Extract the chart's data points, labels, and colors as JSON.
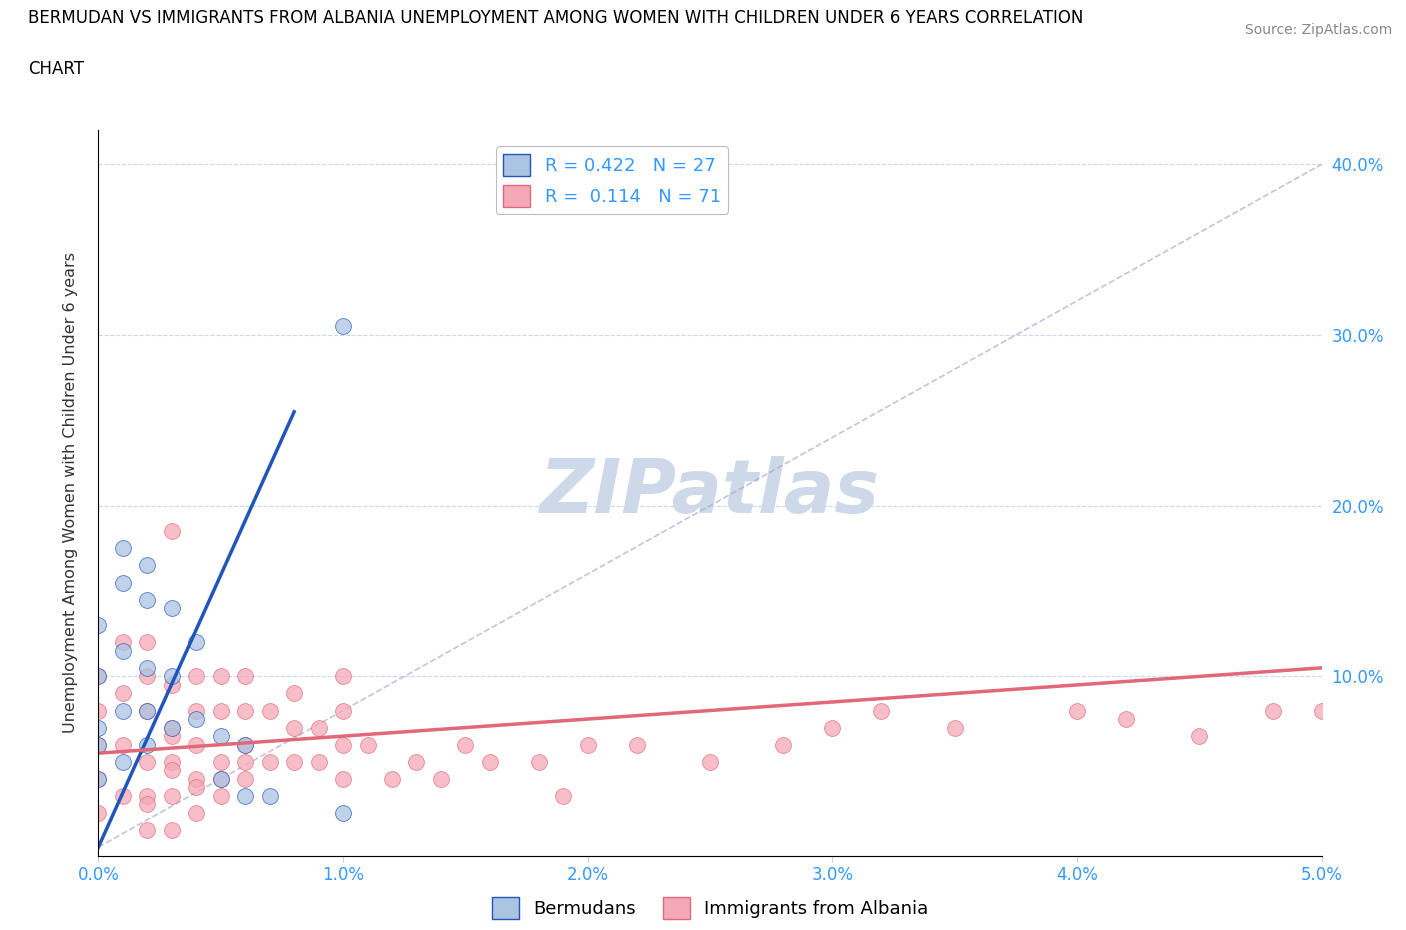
{
  "title_line1": "BERMUDAN VS IMMIGRANTS FROM ALBANIA UNEMPLOYMENT AMONG WOMEN WITH CHILDREN UNDER 6 YEARS CORRELATION",
  "title_line2": "CHART",
  "source": "Source: ZipAtlas.com",
  "ylabel": "Unemployment Among Women with Children Under 6 years",
  "xlim": [
    0.0,
    0.05
  ],
  "ylim": [
    -0.005,
    0.42
  ],
  "xticks": [
    0.0,
    0.01,
    0.02,
    0.03,
    0.04,
    0.05
  ],
  "yticks": [
    0.1,
    0.2,
    0.3,
    0.4
  ],
  "xticklabels": [
    "0.0%",
    "1.0%",
    "2.0%",
    "3.0%",
    "4.0%",
    "5.0%"
  ],
  "yticklabels": [
    "10.0%",
    "20.0%",
    "30.0%",
    "40.0%"
  ],
  "legend_r1": "R = 0.422   N = 27",
  "legend_r2": "R =  0.114   N = 71",
  "color_bermudan": "#aac4e2",
  "color_albania": "#f5a8b8",
  "color_line_bermudan": "#2255bb",
  "color_line_albania": "#e06878",
  "color_diag": "#aaaacc",
  "color_tick": "#3399ff",
  "watermark_color": "#cdd8e8",
  "blue_x": [
    0.0,
    0.0,
    0.0,
    0.0,
    0.0,
    0.001,
    0.001,
    0.001,
    0.001,
    0.001,
    0.002,
    0.002,
    0.002,
    0.002,
    0.002,
    0.003,
    0.003,
    0.003,
    0.004,
    0.004,
    0.005,
    0.005,
    0.006,
    0.006,
    0.007,
    0.01,
    0.01
  ],
  "blue_y": [
    0.04,
    0.06,
    0.07,
    0.1,
    0.13,
    0.05,
    0.08,
    0.115,
    0.155,
    0.175,
    0.06,
    0.08,
    0.105,
    0.145,
    0.165,
    0.07,
    0.1,
    0.14,
    0.075,
    0.12,
    0.04,
    0.065,
    0.03,
    0.06,
    0.03,
    0.02,
    0.305
  ],
  "pink_x": [
    0.0,
    0.0,
    0.0,
    0.0,
    0.0,
    0.001,
    0.001,
    0.001,
    0.001,
    0.002,
    0.002,
    0.002,
    0.002,
    0.002,
    0.002,
    0.003,
    0.003,
    0.003,
    0.003,
    0.003,
    0.003,
    0.004,
    0.004,
    0.004,
    0.004,
    0.004,
    0.005,
    0.005,
    0.005,
    0.005,
    0.006,
    0.006,
    0.006,
    0.006,
    0.007,
    0.007,
    0.008,
    0.008,
    0.008,
    0.009,
    0.009,
    0.01,
    0.01,
    0.01,
    0.01,
    0.011,
    0.012,
    0.013,
    0.014,
    0.015,
    0.016,
    0.018,
    0.019,
    0.02,
    0.022,
    0.025,
    0.028,
    0.03,
    0.032,
    0.035,
    0.04,
    0.042,
    0.045,
    0.048,
    0.05,
    0.003,
    0.004,
    0.002,
    0.003,
    0.005,
    0.006
  ],
  "pink_y": [
    0.02,
    0.04,
    0.06,
    0.08,
    0.1,
    0.03,
    0.06,
    0.09,
    0.12,
    0.01,
    0.03,
    0.05,
    0.08,
    0.1,
    0.12,
    0.01,
    0.03,
    0.05,
    0.07,
    0.095,
    0.185,
    0.02,
    0.04,
    0.06,
    0.08,
    0.1,
    0.03,
    0.05,
    0.08,
    0.1,
    0.04,
    0.06,
    0.08,
    0.1,
    0.05,
    0.08,
    0.05,
    0.07,
    0.09,
    0.05,
    0.07,
    0.04,
    0.06,
    0.08,
    0.1,
    0.06,
    0.04,
    0.05,
    0.04,
    0.06,
    0.05,
    0.05,
    0.03,
    0.06,
    0.06,
    0.05,
    0.06,
    0.07,
    0.08,
    0.07,
    0.08,
    0.075,
    0.065,
    0.08,
    0.08,
    0.045,
    0.035,
    0.025,
    0.065,
    0.04,
    0.05
  ],
  "blue_trend_x": [
    0.0,
    0.008
  ],
  "blue_trend_y": [
    0.0,
    0.255
  ],
  "pink_trend_x": [
    0.0,
    0.05
  ],
  "pink_trend_y": [
    0.055,
    0.105
  ]
}
